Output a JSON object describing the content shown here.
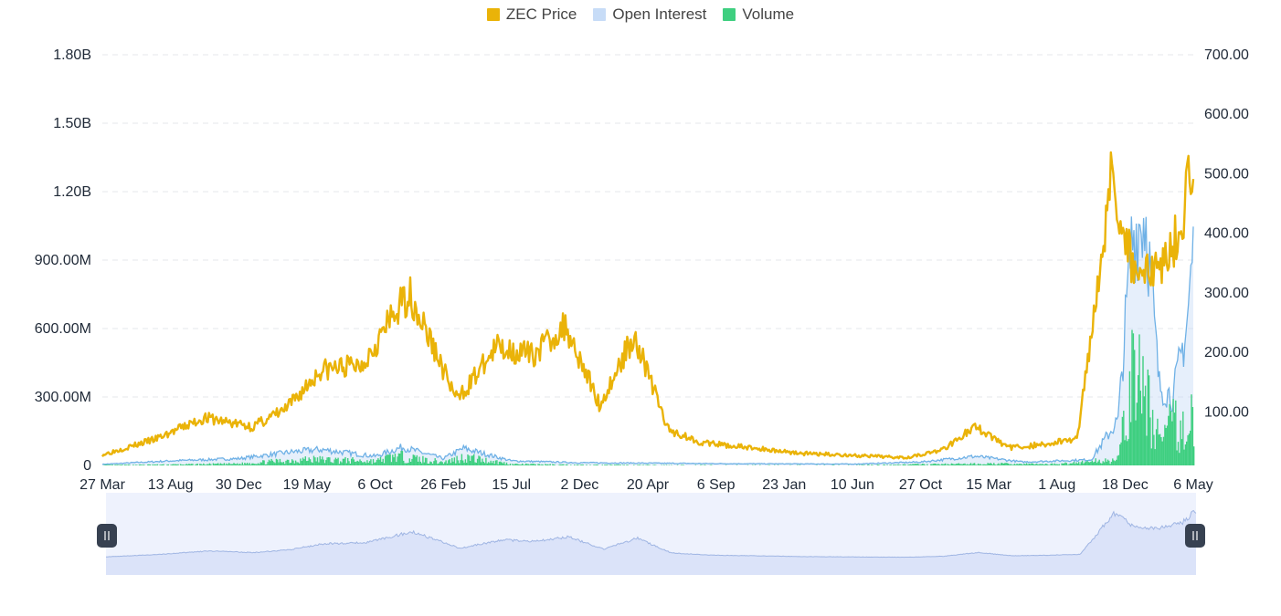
{
  "colors": {
    "price": "#eab308",
    "open_interest_line": "#6fb1e6",
    "open_interest_fill": "#c7dcf7",
    "volume": "#3fcf80",
    "grid": "#e5e7eb",
    "navigator_fill": "#dbe3f9",
    "navigator_line": "#9fb5e3",
    "handle": "#374151"
  },
  "chart_data": {
    "type": "line",
    "legend": [
      {
        "name": "ZEC Price",
        "color": "#eab308"
      },
      {
        "name": "Open Interest",
        "color": "#c7dcf7"
      },
      {
        "name": "Volume",
        "color": "#3fcf80"
      }
    ],
    "legend_placement": "top-center",
    "grid": true,
    "x_ticks": [
      "27 Mar",
      "13 Aug",
      "30 Dec",
      "19 May",
      "6 Oct",
      "26 Feb",
      "15 Jul",
      "2 Dec",
      "20 Apr",
      "6 Sep",
      "23 Jan",
      "10 Jun",
      "27 Oct",
      "15 Mar",
      "1 Aug",
      "18 Dec",
      "6 May"
    ],
    "y_left_ticks": [
      "0",
      "300.00M",
      "600.00M",
      "900.00M",
      "1.20B",
      "1.50B",
      "1.80B"
    ],
    "y_left_range": [
      0,
      1800000000
    ],
    "y_right_ticks": [
      "100.00",
      "200.00",
      "300.00",
      "400.00",
      "500.00",
      "600.00",
      "700.00"
    ],
    "y_right_range": [
      10,
      700
    ],
    "series": [
      {
        "name": "ZEC Price",
        "axis": "right",
        "style": "line",
        "x": [
          0,
          0.8,
          1.5,
          2.2,
          2.7,
          3.2,
          3.8,
          4.5,
          5.2,
          5.8,
          6.3,
          6.8,
          7.3,
          7.8,
          8.3,
          8.8,
          9.3,
          9.8,
          10.3,
          10.8,
          11.3,
          11.8,
          12.3,
          12.8,
          13.3,
          13.8,
          14.3,
          14.8,
          15.1,
          15.4,
          15.8,
          16.0
        ],
        "y": [
          28,
          55,
          90,
          75,
          105,
          170,
          180,
          300,
          120,
          210,
          195,
          245,
          110,
          230,
          70,
          48,
          42,
          36,
          30,
          28,
          25,
          24,
          35,
          75,
          40,
          45,
          55,
          500,
          350,
          330,
          400,
          530
        ]
      },
      {
        "name": "Open Interest",
        "axis": "left",
        "style": "area",
        "x": [
          0,
          1,
          2,
          2.8,
          3.2,
          4,
          4.4,
          5,
          5.3,
          6,
          7,
          8,
          9,
          10,
          11,
          12,
          12.8,
          13.5,
          14.5,
          14.9,
          15.1,
          15.3,
          15.5,
          15.7,
          15.9,
          16.0
        ],
        "y": [
          5000000,
          20000000,
          30000000,
          60000000,
          70000000,
          40000000,
          80000000,
          30000000,
          75000000,
          20000000,
          12000000,
          10000000,
          8000000,
          7000000,
          6000000,
          15000000,
          40000000,
          15000000,
          25000000,
          200000000,
          1000000000,
          1100000000,
          350000000,
          300000000,
          600000000,
          950000000
        ]
      },
      {
        "name": "Volume",
        "axis": "left",
        "style": "bars",
        "x": [
          0,
          1,
          2,
          3,
          4,
          4.3,
          5,
          5.3,
          6,
          7,
          8,
          9,
          10,
          11,
          12,
          13,
          14,
          14.9,
          15.1,
          15.3,
          15.5,
          15.7,
          15.9,
          16.0
        ],
        "y": [
          2000000,
          4000000,
          8000000,
          30000000,
          20000000,
          45000000,
          15000000,
          40000000,
          6000000,
          3000000,
          2000000,
          1500000,
          1500000,
          1500000,
          5000000,
          8000000,
          6000000,
          30000000,
          450000000,
          320000000,
          120000000,
          200000000,
          160000000,
          250000000
        ]
      }
    ]
  }
}
